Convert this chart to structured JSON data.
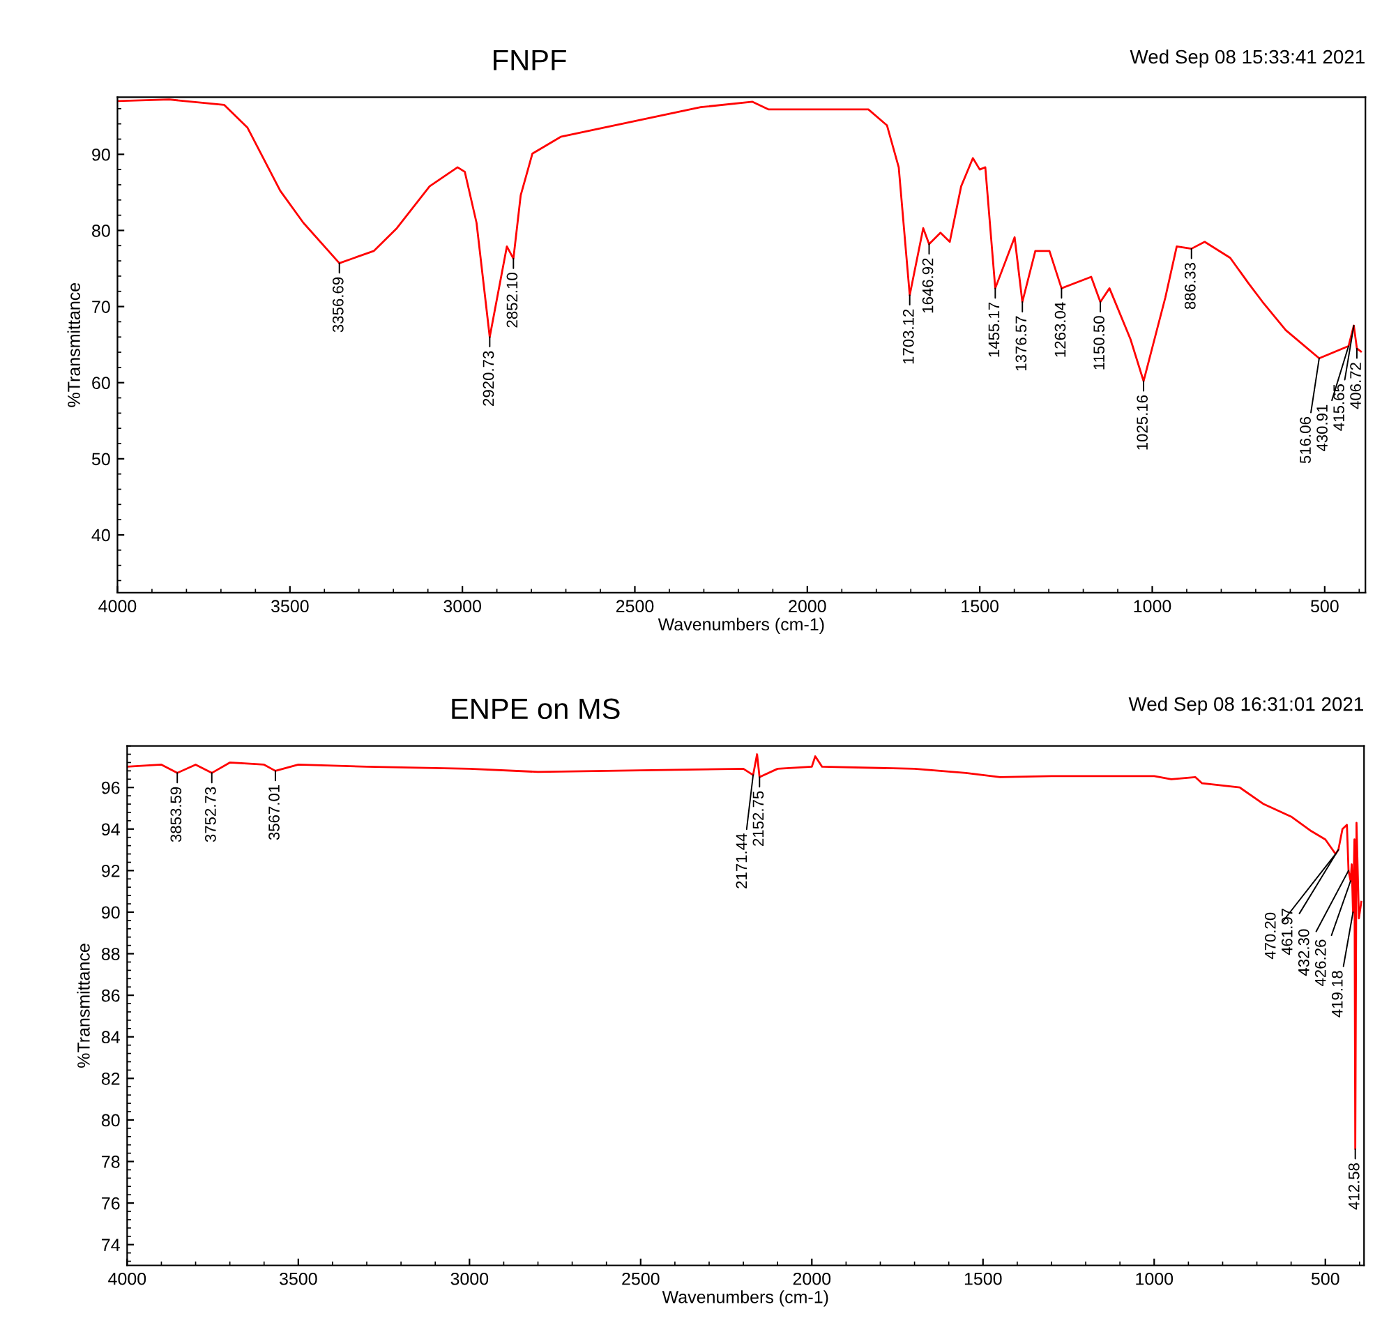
{
  "chart_data": [
    {
      "type": "line",
      "title": "FNPF",
      "xlabel": "Wavenumbers (cm-1)",
      "ylabel": "%Transmittance",
      "xlim": [
        4000,
        382
      ],
      "ylim": [
        32.4,
        97.5
      ],
      "xticks": [
        4000,
        3500,
        3000,
        2500,
        2000,
        1500,
        1000,
        500
      ],
      "yticks": [
        40,
        50,
        60,
        70,
        80,
        90
      ],
      "grid": false,
      "marker": "none",
      "line_style": "solid",
      "series": [
        {
          "color": "#ff0000",
          "x": [
            3996,
            3850,
            3691,
            3623,
            3528,
            3461,
            3356.69,
            3257,
            3190,
            3095,
            3014,
            2993,
            2959,
            2920.73,
            2871,
            2852.1,
            2831,
            2797,
            2715,
            2309,
            2159,
            2112,
            1823,
            1769,
            1735,
            1703.12,
            1664,
            1646.92,
            1614,
            1587,
            1554,
            1520,
            1500,
            1484,
            1455.17,
            1399,
            1376.57,
            1339,
            1298,
            1263.04,
            1177,
            1150.5,
            1124,
            1063,
            1025.16,
            962,
            929,
            886.33,
            848,
            774,
            720,
            680,
            613,
            516.06,
            430.91,
            415.65,
            406.72,
            395
          ],
          "values": [
            97.0,
            97.2,
            96.5,
            93.5,
            85.2,
            81.0,
            75.7,
            77.3,
            80.3,
            85.8,
            88.3,
            87.7,
            81.0,
            66.0,
            77.9,
            76.3,
            84.6,
            90.1,
            92.3,
            96.2,
            96.9,
            95.9,
            95.9,
            93.8,
            88.3,
            71.5,
            80.3,
            78.2,
            79.7,
            78.5,
            85.8,
            89.5,
            88.0,
            88.3,
            72.4,
            79.1,
            70.6,
            77.3,
            77.3,
            72.4,
            73.9,
            70.6,
            72.4,
            65.7,
            60.2,
            71.2,
            77.9,
            77.6,
            78.5,
            76.4,
            73.0,
            70.6,
            66.9,
            63.2,
            64.8,
            67.5,
            64.5,
            64.1
          ]
        }
      ],
      "annotations": [
        "Wed Sep 08 15:33:41 2021",
        {
          "text": "3356.69",
          "x": 3356.69,
          "y": 75.7
        },
        {
          "text": "2920.73",
          "x": 2920.73,
          "y": 66.0
        },
        {
          "text": "2852.10",
          "x": 2852.1,
          "y": 76.3
        },
        {
          "text": "1703.12",
          "x": 1703.12,
          "y": 71.5
        },
        {
          "text": "1646.92",
          "x": 1646.92,
          "y": 78.2
        },
        {
          "text": "1455.17",
          "x": 1455.17,
          "y": 72.4
        },
        {
          "text": "1376.57",
          "x": 1376.57,
          "y": 70.6
        },
        {
          "text": "1263.04",
          "x": 1263.04,
          "y": 72.4
        },
        {
          "text": "1150.50",
          "x": 1150.5,
          "y": 70.6
        },
        {
          "text": "1025.16",
          "x": 1025.16,
          "y": 60.2
        },
        {
          "text": "886.33",
          "x": 886.33,
          "y": 77.6
        },
        {
          "text": "516.06",
          "x": 516.06,
          "y": 63.2
        },
        {
          "text": "430.91",
          "x": 430.91,
          "y": 64.8
        },
        {
          "text": "415.65",
          "x": 415.65,
          "y": 67.5
        },
        {
          "text": "406.72",
          "x": 406.72,
          "y": 64.5
        }
      ]
    },
    {
      "type": "line",
      "title": "ENPE on MS",
      "xlabel": "Wavenumbers (cm-1)",
      "ylabel": "%Transmittance",
      "xlim": [
        4000,
        387
      ],
      "ylim": [
        73,
        98
      ],
      "xticks": [
        4000,
        3500,
        3000,
        2500,
        2000,
        1500,
        1000,
        500
      ],
      "yticks": [
        74,
        76,
        78,
        80,
        82,
        84,
        86,
        88,
        90,
        92,
        94,
        96
      ],
      "grid": false,
      "marker": "none",
      "line_style": "solid",
      "series": [
        {
          "color": "#ff0000",
          "x": [
            4000,
            3900,
            3853.59,
            3800,
            3752.73,
            3700,
            3600,
            3567.01,
            3500,
            3300,
            3000,
            2800,
            2600,
            2400,
            2200,
            2171.44,
            2160,
            2152.75,
            2100,
            2000,
            1990,
            1970,
            1700,
            1550,
            1450,
            1300,
            1000,
            950,
            880,
            860,
            750,
            680,
            600,
            541,
            500,
            470.2,
            461.97,
            450,
            437,
            432.3,
            426.26,
            423,
            419.18,
            415,
            412.58,
            409,
            402,
            395
          ],
          "values": [
            97.0,
            97.1,
            96.7,
            97.1,
            96.7,
            97.2,
            97.1,
            96.8,
            97.1,
            97.0,
            96.9,
            96.75,
            96.8,
            96.85,
            96.9,
            96.6,
            97.6,
            96.5,
            96.9,
            97.0,
            97.5,
            97.0,
            96.9,
            96.7,
            96.5,
            96.55,
            96.55,
            96.4,
            96.5,
            96.2,
            96.0,
            95.2,
            94.6,
            93.9,
            93.5,
            92.8,
            93.0,
            94.0,
            94.2,
            92.0,
            91.5,
            92.3,
            90.0,
            93.5,
            78.6,
            94.3,
            89.7,
            90.5
          ]
        }
      ],
      "annotations": [
        "Wed Sep 08 16:31:01 2021",
        {
          "text": "3853.59",
          "x": 3853.59,
          "y": 96.7
        },
        {
          "text": "3752.73",
          "x": 3752.73,
          "y": 96.7
        },
        {
          "text": "3567.01",
          "x": 3567.01,
          "y": 96.8
        },
        {
          "text": "2171.44",
          "x": 2171.44,
          "y": 96.6
        },
        {
          "text": "2152.75",
          "x": 2152.75,
          "y": 96.5
        },
        {
          "text": "470.20",
          "x": 470.2,
          "y": 92.8
        },
        {
          "text": "461.97",
          "x": 461.97,
          "y": 93.0
        },
        {
          "text": "432.30",
          "x": 432.3,
          "y": 92.0
        },
        {
          "text": "426.26",
          "x": 426.26,
          "y": 91.5
        },
        {
          "text": "419.18",
          "x": 419.18,
          "y": 90.0
        },
        {
          "text": "412.58",
          "x": 412.58,
          "y": 78.6
        }
      ]
    }
  ]
}
